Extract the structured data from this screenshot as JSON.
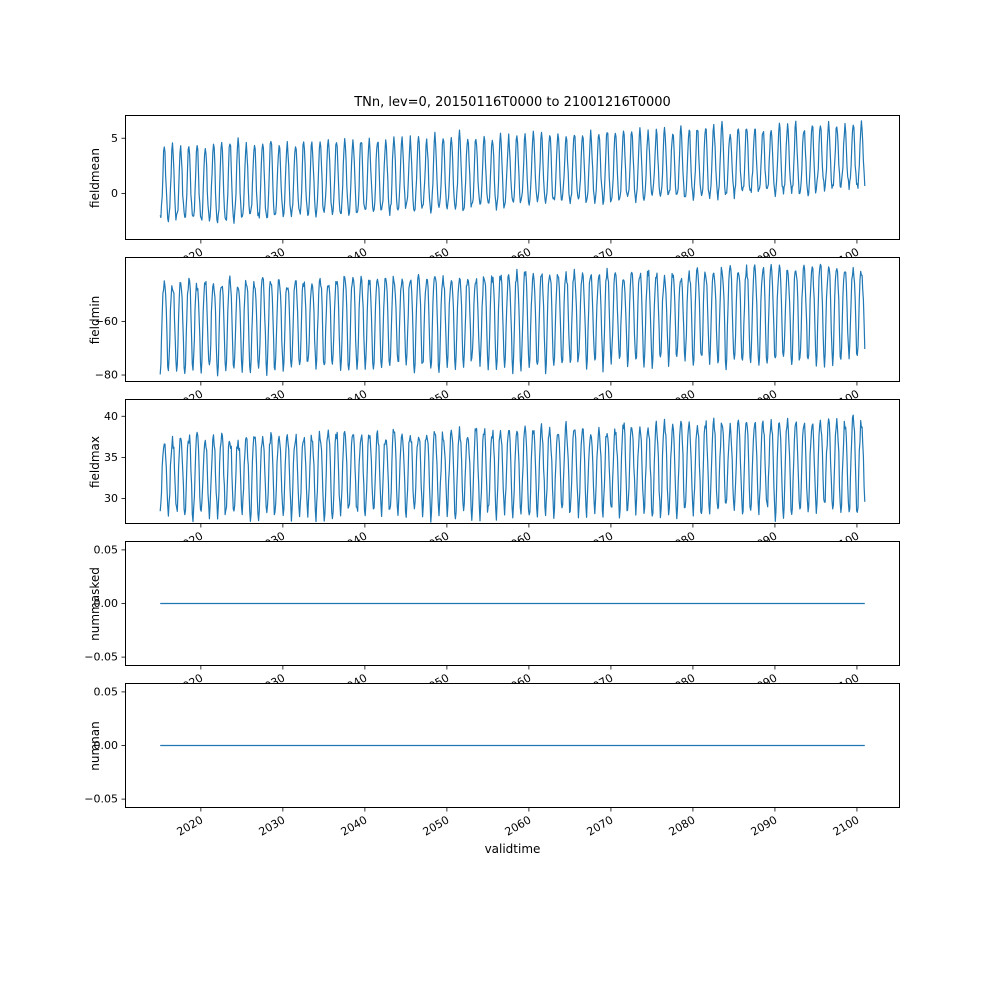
{
  "figure": {
    "title": "TNn, lev=0, 20150116T0000 to 21001216T0000",
    "xlabel": "validtime",
    "background": "#ffffff",
    "line_color": "#1f77b4",
    "spine_color": "#000000",
    "text_color": "#000000"
  },
  "axes": {
    "x_min": 2010.75,
    "x_max": 2105.25,
    "xticks": [
      2020,
      2030,
      2040,
      2050,
      2060,
      2070,
      2080,
      2090,
      2100
    ],
    "xtick_labels": [
      "2020",
      "2030",
      "2040",
      "2050",
      "2060",
      "2070",
      "2080",
      "2090",
      "2100"
    ],
    "xtick_rotation_deg": 30
  },
  "chart_data": [
    {
      "type": "line",
      "name": "fieldmean",
      "ylabel": "fieldmean",
      "x_start": 2015.04,
      "x_end": 2100.96,
      "ylim": [
        -4.2,
        7.1
      ],
      "yticks": [
        {
          "v": 0,
          "label": "0"
        },
        {
          "v": 5,
          "label": "5"
        }
      ],
      "series": {
        "kind": "seasonal_monthly",
        "description": "monthly seasonal cycle, winter minima near -3 rising to ~0.5, summer maxima near 4 rising to ~6.3 over 2015-2100",
        "base_start": 0.5,
        "base_end": 3.1,
        "amp_start": 3.4,
        "amp_end": 2.9,
        "shape": 0.12,
        "noise": 0.4,
        "amp_jitter": 0.08,
        "seed": 11
      }
    },
    {
      "type": "line",
      "name": "fieldmin",
      "ylabel": "fieldmin",
      "x_start": 2015.04,
      "x_end": 2100.96,
      "ylim": [
        -82.6,
        -36.0
      ],
      "yticks": [
        {
          "v": -60,
          "label": "−60"
        },
        {
          "v": -80,
          "label": "−80"
        }
      ],
      "series": {
        "kind": "seasonal_monthly",
        "description": "monthly seasonal cycle, winter minima near -80 rising to ~-75, summer maxima near -45 rising to ~-38 over 2015-2100",
        "base_start": -60,
        "base_end": -55,
        "amp_start": 16.5,
        "amp_end": 17,
        "shape": -0.15,
        "noise": 2.0,
        "amp_jitter": 0.08,
        "seed": 22
      }
    },
    {
      "type": "line",
      "name": "fieldmax",
      "ylabel": "fieldmax",
      "x_start": 2015.04,
      "x_end": 2100.96,
      "ylim": [
        26.9,
        42.1
      ],
      "yticks": [
        {
          "v": 30,
          "label": "30"
        },
        {
          "v": 35,
          "label": "35"
        },
        {
          "v": 40,
          "label": "40"
        }
      ],
      "series": {
        "kind": "seasonal_monthly",
        "description": "monthly seasonal cycle, winter minima near 28 rising to ~29, summer maxima near 38 rising to ~41 over 2015-2100",
        "base_start": 33,
        "base_end": 34.5,
        "amp_start": 4.5,
        "amp_end": 5.5,
        "shape": -0.1,
        "noise": 0.8,
        "amp_jitter": 0.08,
        "seed": 33
      }
    },
    {
      "type": "line",
      "name": "nummasked",
      "ylabel": "nummasked",
      "x_start": 2015.04,
      "x_end": 2100.96,
      "ylim": [
        -0.0583,
        0.0583
      ],
      "yticks": [
        {
          "v": 0.05,
          "label": "0.05"
        },
        {
          "v": 0,
          "label": "0.00"
        },
        {
          "v": -0.05,
          "label": "−0.05"
        }
      ],
      "series": {
        "kind": "constant",
        "description": "flat line at 0 for the whole period",
        "value": 0
      }
    },
    {
      "type": "line",
      "name": "numnan",
      "ylabel": "numnan",
      "x_start": 2015.04,
      "x_end": 2100.96,
      "ylim": [
        -0.0583,
        0.0583
      ],
      "yticks": [
        {
          "v": 0.05,
          "label": "0.05"
        },
        {
          "v": 0,
          "label": "0.00"
        },
        {
          "v": -0.05,
          "label": "−0.05"
        }
      ],
      "series": {
        "kind": "constant",
        "description": "flat line at 0 for the whole period",
        "value": 0
      }
    }
  ]
}
